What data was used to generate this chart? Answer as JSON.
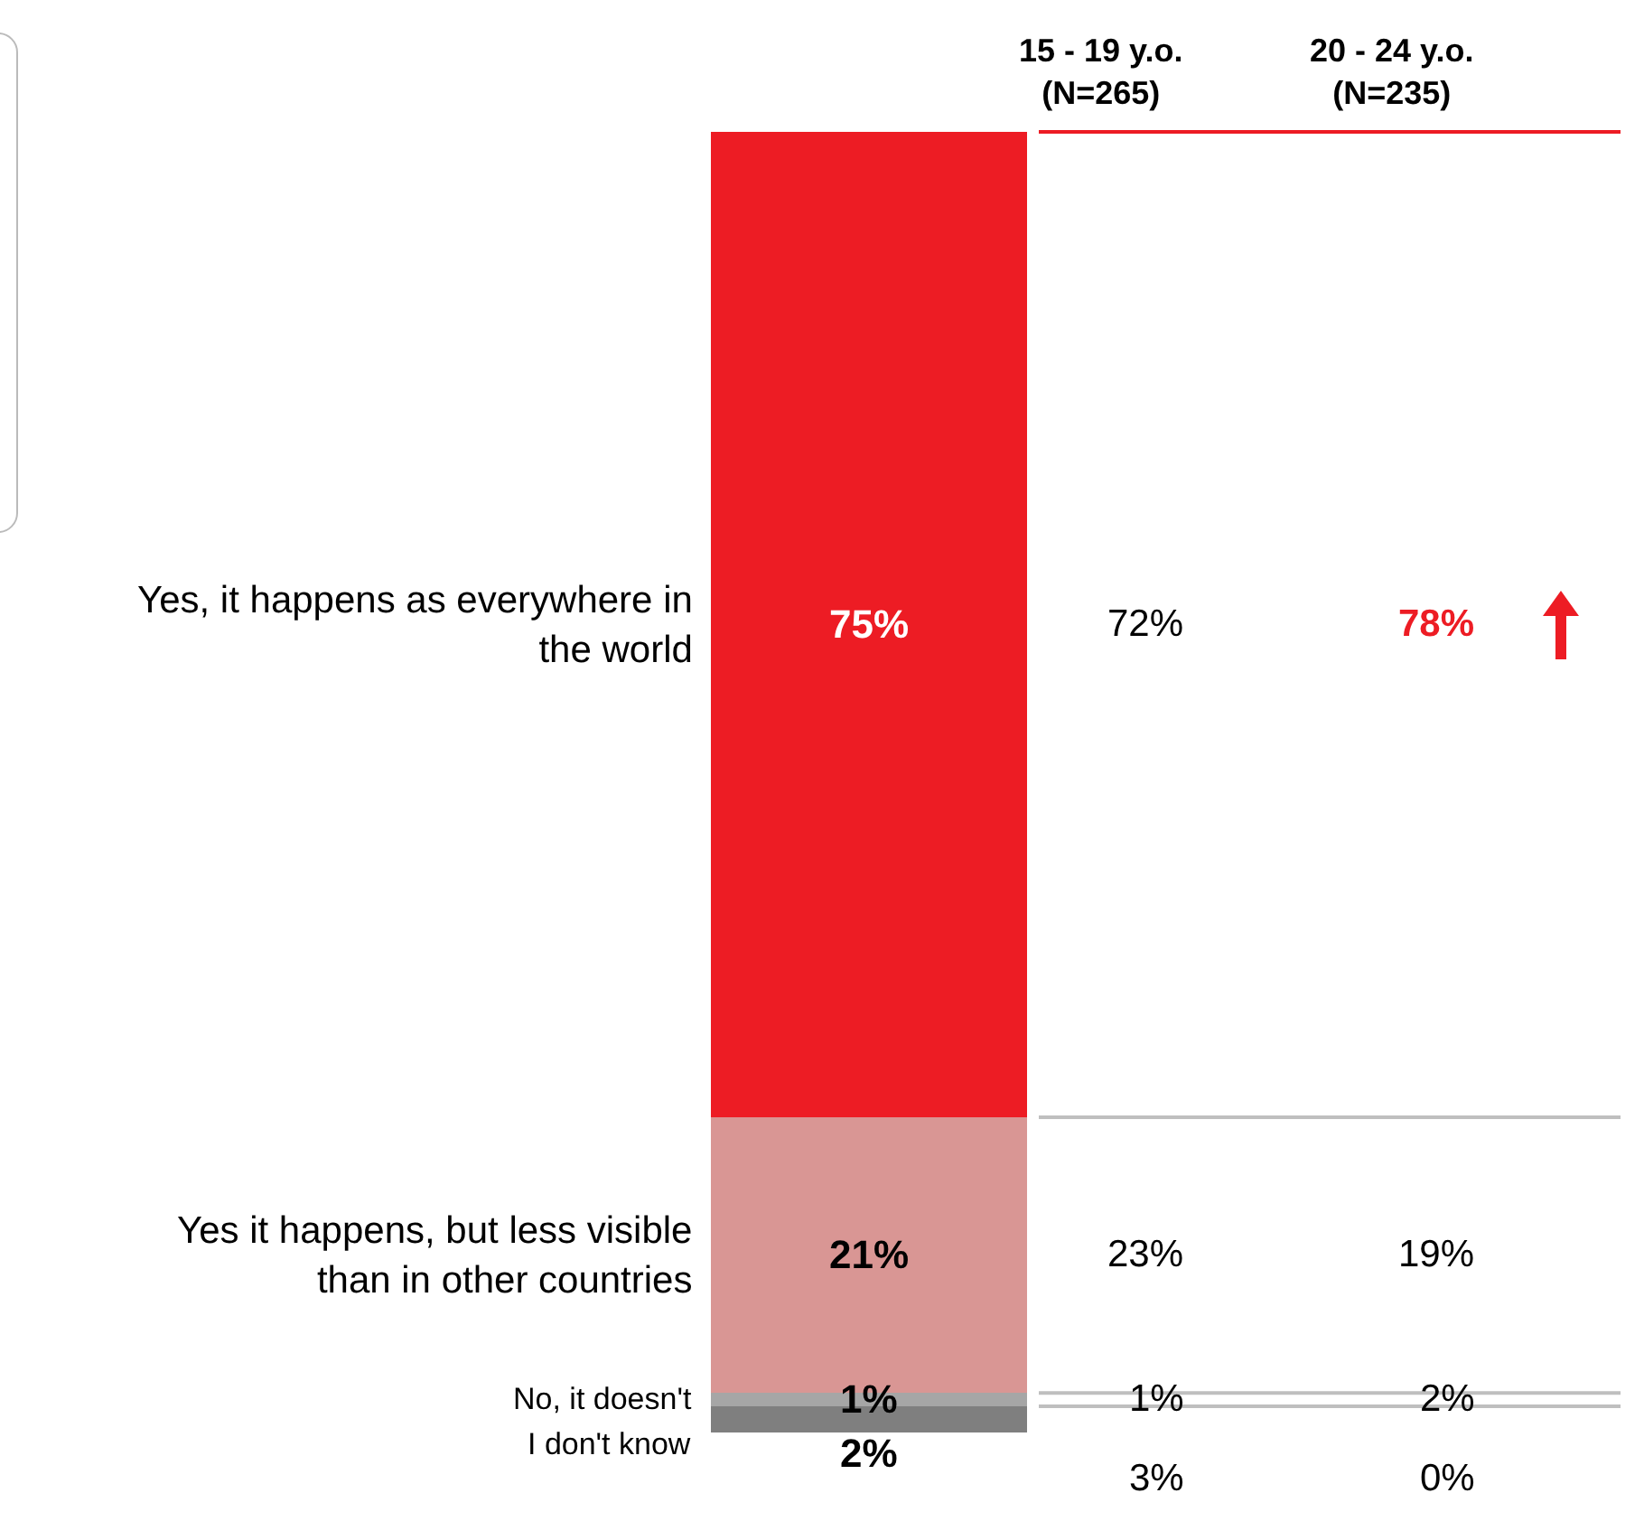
{
  "chart_data": {
    "type": "bar",
    "stacked": true,
    "categories": [
      null
    ],
    "series": [
      {
        "name": "I don't know",
        "color": "#7f7f7f",
        "values": [
          2
        ],
        "value_labels": [
          "2%"
        ]
      },
      {
        "name": "No, it doesn't",
        "color": "#a6a6a6",
        "values": [
          1
        ],
        "value_labels": [
          "1%"
        ]
      },
      {
        "name": "Yes it happens, but less visible than in other countries",
        "color": "#d99694",
        "values": [
          21
        ],
        "value_labels": [
          "21%"
        ]
      },
      {
        "name": "Yes, it happens as everywhere in the world",
        "color": "#ed1c24",
        "values": [
          75
        ],
        "value_labels": [
          "75%"
        ]
      }
    ],
    "annotations": [
      "15 - 19 y.o.\n(N=265)",
      "20 - 24 y.o.\n(N=235)",
      "72%",
      "78%",
      "23%",
      "19%",
      "1%",
      "2%",
      "3%",
      "0%"
    ]
  }
}
